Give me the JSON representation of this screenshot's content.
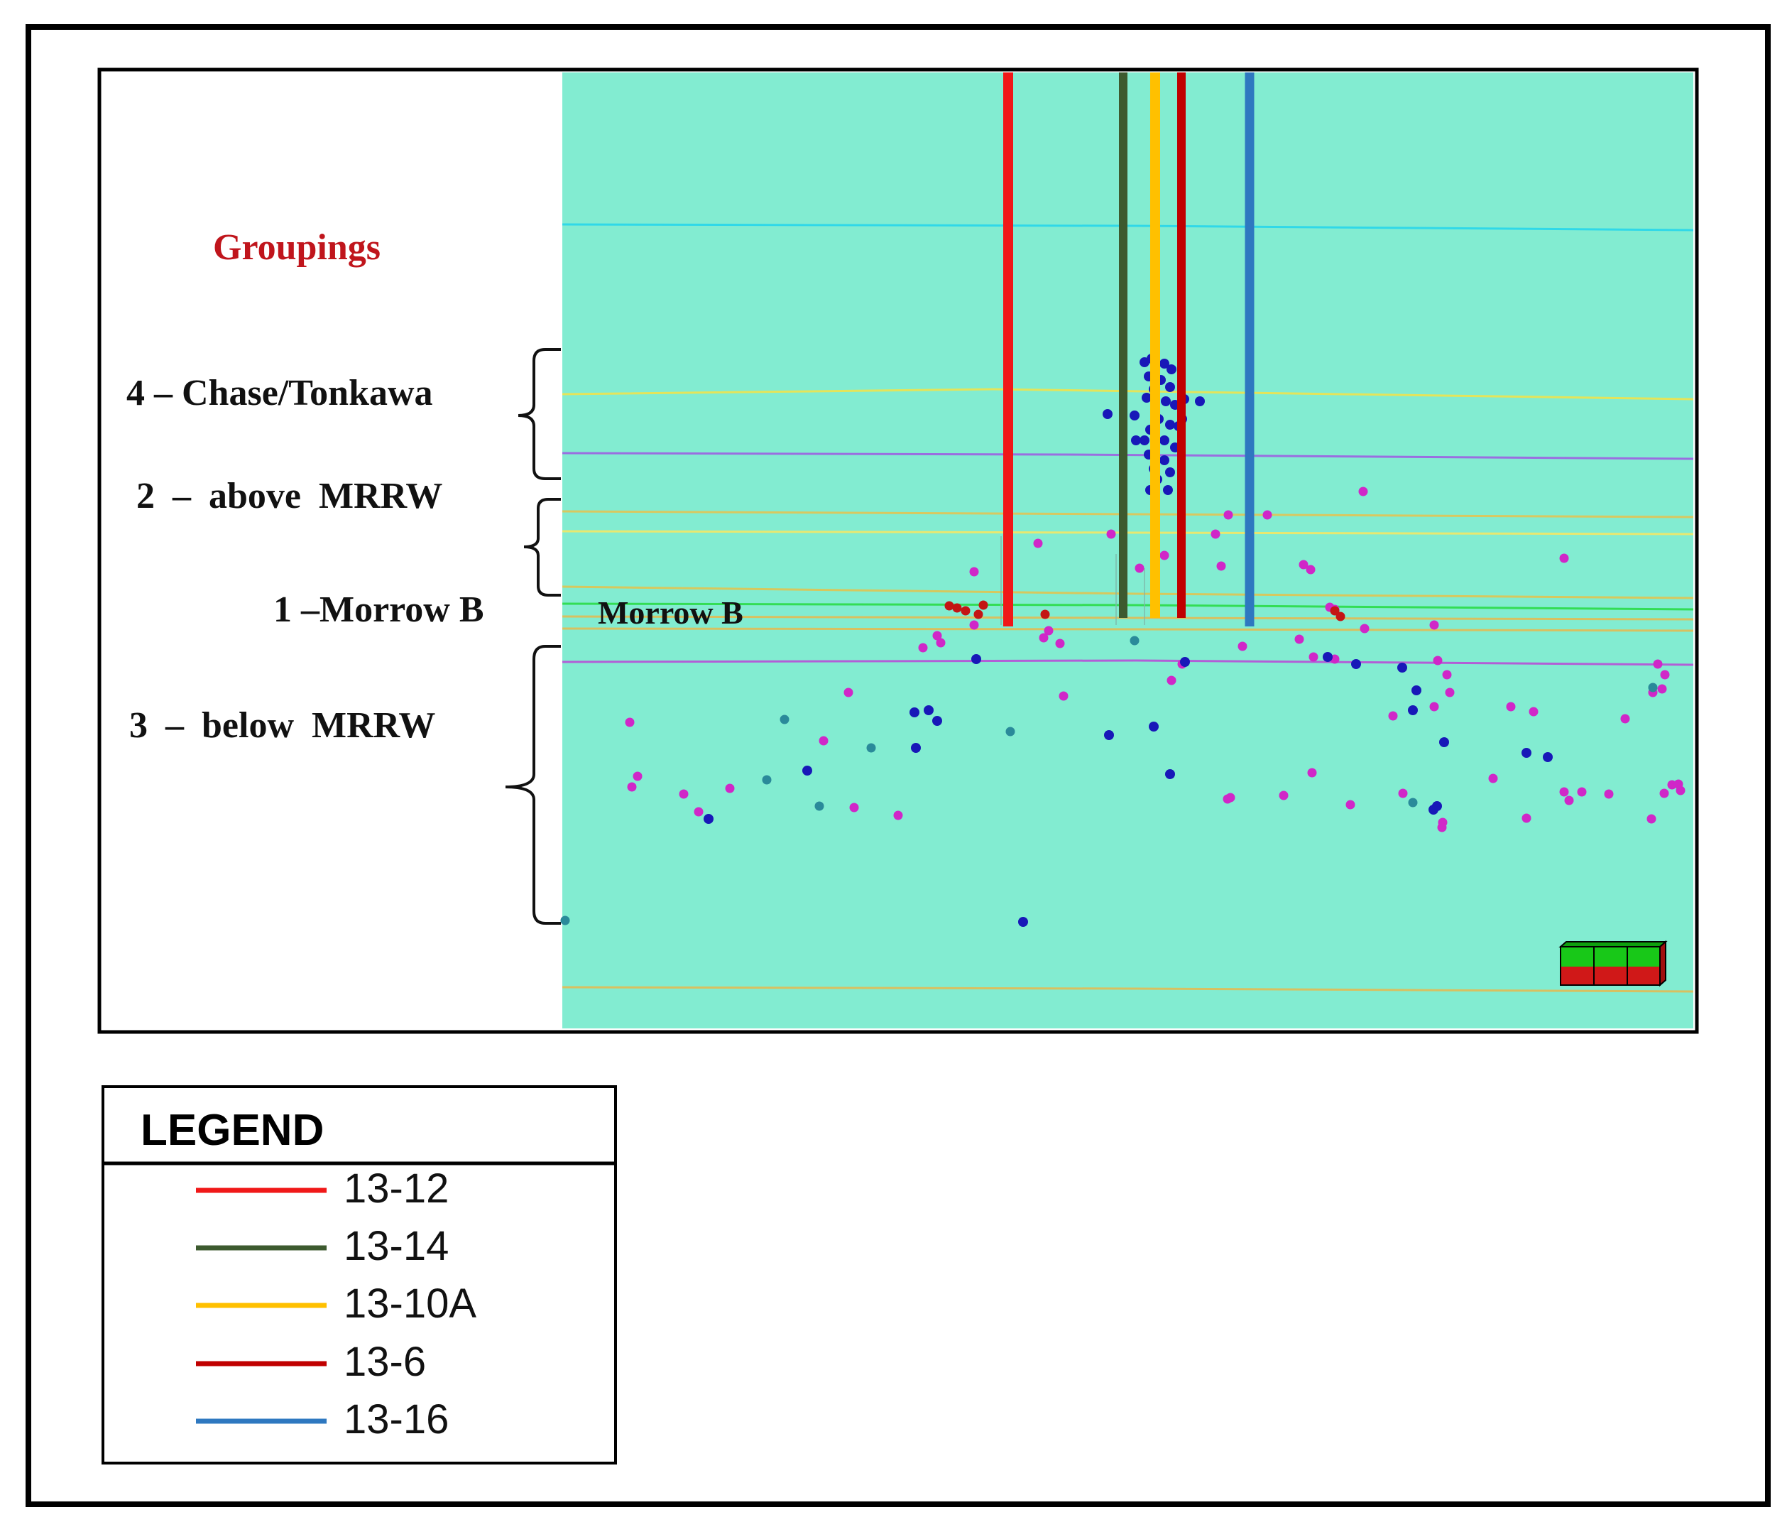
{
  "panel": {
    "background_color": "#82ecd1",
    "groupings_title": "Groupings",
    "groupings_title_color": "#c0151c",
    "group_labels": [
      "4 – Chase/Tonkawa",
      "2 – above MRRW",
      "1 –Morrow B",
      "3 – below MRRW"
    ],
    "zone_label": "Morrow B"
  },
  "horizons": [
    {
      "color": "#30d8e8"
    },
    {
      "color": "#e4e45a"
    },
    {
      "color": "#9a6ee0"
    },
    {
      "color": "#d8c860"
    },
    {
      "color": "#e8e870"
    },
    {
      "color": "#d6c85e"
    },
    {
      "color": "#33dd55"
    },
    {
      "color": "#d8c060"
    },
    {
      "color": "#d8c060"
    },
    {
      "color": "#b25ed6"
    },
    {
      "color": "#d8c060"
    }
  ],
  "wells": [
    {
      "name": "13-12",
      "color": "#f01818"
    },
    {
      "name": "13-14",
      "color": "#3d5a2f"
    },
    {
      "name": "13-10A",
      "color": "#ffc000"
    },
    {
      "name": "13-6",
      "color": "#c00000"
    },
    {
      "name": "13-16",
      "color": "#2e78c0"
    }
  ],
  "event_colors": {
    "blue": "#1818b8",
    "magenta": "#d027c8",
    "red": "#c41414",
    "teal": "#2a8a9a"
  },
  "scale_box_colors": {
    "top": "#18c818",
    "bottom": "#d01818"
  },
  "legend": {
    "title": "LEGEND"
  }
}
